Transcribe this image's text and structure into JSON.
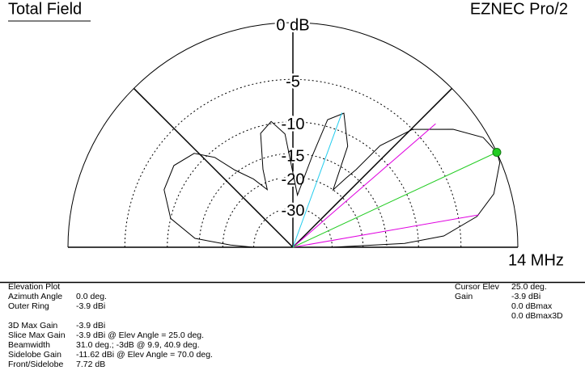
{
  "header": {
    "title": "Total Field",
    "program": "EZNEC Pro/2",
    "frequency": "14 MHz"
  },
  "chart_data": {
    "type": "polar-elevation",
    "scale": "arrl-log",
    "x": [
      0,
      2,
      4.3,
      9.5,
      14.9,
      22.3,
      25,
      30,
      36.4,
      44.6,
      49.4,
      50.9,
      52.5,
      55,
      61.6,
      69.2,
      74.8,
      78,
      85,
      94,
      99.8,
      105.8,
      111,
      114,
      120,
      126.9,
      131,
      136.4,
      145.5,
      155.9,
      166.7,
      174.8,
      178,
      180
    ],
    "values": [
      -30,
      -12,
      -6.8,
      -3.2,
      -1.35,
      -0.1,
      0,
      -0.4,
      -2.1,
      -5,
      -8.9,
      -13.9,
      -16.2,
      -20,
      -11.5,
      -7.7,
      -9.1,
      -15,
      -25,
      -11.7,
      -9.7,
      -11,
      -17,
      -21.8,
      -18,
      -14.5,
      -10.9,
      -8.6,
      -7.6,
      -8,
      -10,
      -14.2,
      -22,
      -30
    ],
    "color": "#000000",
    "xlim": [
      0,
      180
    ],
    "rticks": [
      {
        "value": 0,
        "label": "0 dB"
      },
      -5,
      -10,
      -15,
      -20,
      -30
    ],
    "radials": [
      45,
      90,
      135
    ],
    "cursor": {
      "angle": 25,
      "gain": 0,
      "color": "#22cc22"
    },
    "beamwidth_lines": {
      "angles": [
        9.9,
        40.9
      ],
      "gain": -3,
      "color": "#e000e0"
    },
    "sidelobe_line": {
      "angle": 70,
      "gain": -7.72,
      "color": "#22ccee"
    }
  },
  "info": {
    "left": [
      {
        "label": "Elevation Plot"
      },
      {
        "label": "Azimuth Angle",
        "value": "0.0 deg."
      },
      {
        "label": "Outer Ring",
        "value": "-3.9 dBi"
      }
    ],
    "left2": [
      {
        "label": "3D Max Gain",
        "value": "-3.9 dBi"
      },
      {
        "label": "Slice Max Gain",
        "value": "-3.9 dBi @ Elev Angle = 25.0 deg."
      },
      {
        "label": "Beamwidth",
        "value": "31.0 deg.; -3dB @ 9.9, 40.9 deg."
      },
      {
        "label": "Sidelobe Gain",
        "value": "-11.62 dBi @ Elev Angle = 70.0 deg."
      },
      {
        "label": "Front/Sidelobe",
        "value": "7.72 dB"
      }
    ],
    "right": [
      {
        "label": "Cursor Elev",
        "value": "25.0 deg."
      },
      {
        "label": "Gain",
        "value": "-3.9 dBi"
      },
      {
        "value": "0.0 dBmax"
      },
      {
        "value": "0.0 dBmax3D"
      }
    ]
  }
}
